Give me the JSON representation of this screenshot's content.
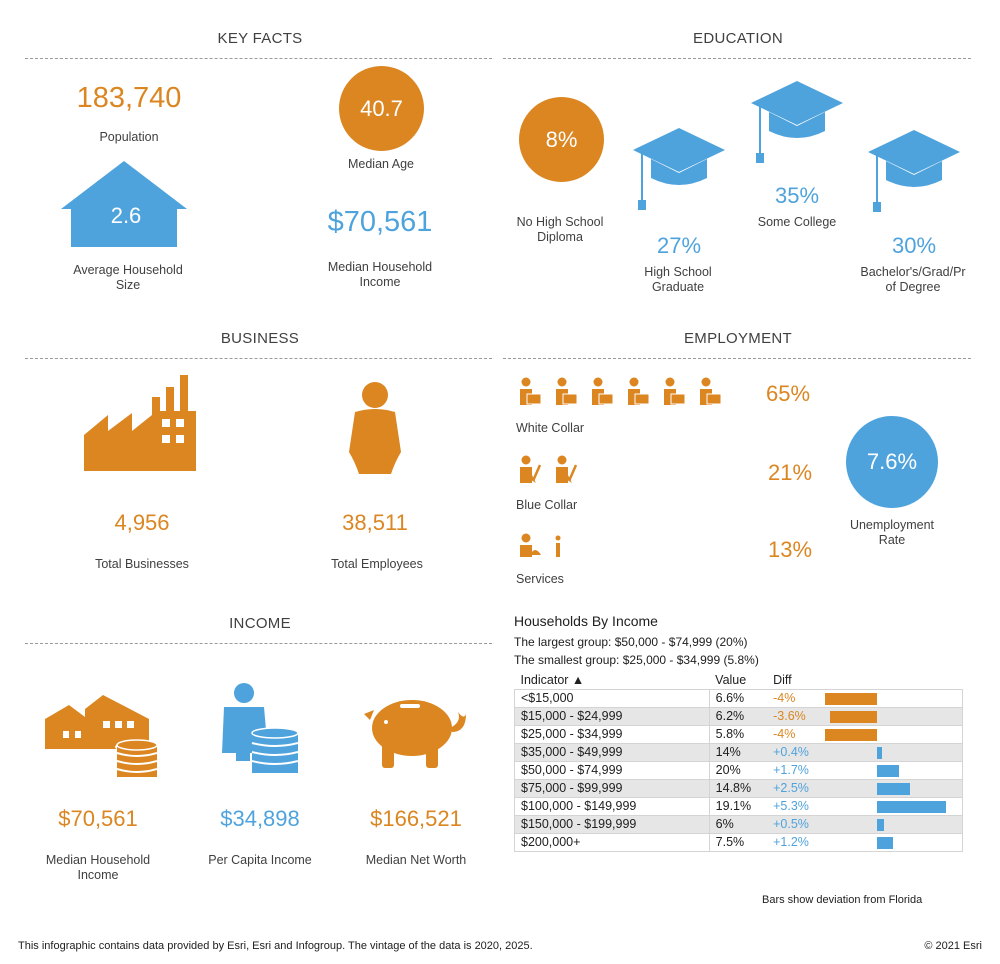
{
  "key_facts": {
    "title": "KEY FACTS",
    "population": {
      "value": "183,740",
      "label": "Population"
    },
    "median_age": {
      "value": "40.7",
      "label": "Median Age"
    },
    "avg_household_size": {
      "value": "2.6",
      "label_line1": "Average Household",
      "label_line2": "Size"
    },
    "median_household_income": {
      "value": "$70,561",
      "label_line1": "Median Household",
      "label_line2": "Income"
    }
  },
  "education": {
    "title": "EDUCATION",
    "no_high_school": {
      "value": "8%",
      "label_line1": "No High School",
      "label_line2": "Diploma"
    },
    "high_school": {
      "value": "27%",
      "label_line1": "High School",
      "label_line2": "Graduate"
    },
    "some_college": {
      "value": "35%",
      "label": "Some College"
    },
    "bachelors": {
      "value": "30%",
      "label_line1": "Bachelor's/Grad/Pr",
      "label_line2": "of Degree"
    }
  },
  "business": {
    "title": "BUSINESS",
    "total_businesses": {
      "value": "4,956",
      "label": "Total Businesses"
    },
    "total_employees": {
      "value": "38,511",
      "label": "Total Employees"
    }
  },
  "employment": {
    "title": "EMPLOYMENT",
    "white_collar": {
      "value": "65%",
      "label": "White Collar"
    },
    "blue_collar": {
      "value": "21%",
      "label": "Blue Collar"
    },
    "services": {
      "value": "13%",
      "label": "Services"
    },
    "unemployment": {
      "value": "7.6%",
      "label_line1": "Unemployment",
      "label_line2": "Rate"
    }
  },
  "income": {
    "title": "INCOME",
    "median_household_income": {
      "value": "$70,561",
      "label_line1": "Median Household",
      "label_line2": "Income"
    },
    "per_capita_income": {
      "value": "$34,898",
      "label": "Per Capita Income"
    },
    "median_net_worth": {
      "value": "$166,521",
      "label": "Median Net Worth"
    }
  },
  "households_by_income": {
    "title": "Households By Income",
    "largest": "The largest group: $50,000 - $74,999 (20%)",
    "smallest": "The smallest group: $25,000 - $34,999 (5.8%)",
    "headers": {
      "indicator": "Indicator ▲",
      "value": "Value",
      "diff": "Diff"
    },
    "rows": [
      {
        "indicator": "<$15,000",
        "value": "6.6%",
        "diff": "-4%",
        "diff_num": -4.0
      },
      {
        "indicator": "$15,000 - $24,999",
        "value": "6.2%",
        "diff": "-3.6%",
        "diff_num": -3.6
      },
      {
        "indicator": "$25,000 - $34,999",
        "value": "5.8%",
        "diff": "-4%",
        "diff_num": -4.0
      },
      {
        "indicator": "$35,000 - $49,999",
        "value": "14%",
        "diff": "+0.4%",
        "diff_num": 0.4
      },
      {
        "indicator": "$50,000 - $74,999",
        "value": "20%",
        "diff": "+1.7%",
        "diff_num": 1.7
      },
      {
        "indicator": "$75,000 - $99,999",
        "value": "14.8%",
        "diff": "+2.5%",
        "diff_num": 2.5
      },
      {
        "indicator": "$100,000 - $149,999",
        "value": "19.1%",
        "diff": "+5.3%",
        "diff_num": 5.3
      },
      {
        "indicator": "$150,000 - $199,999",
        "value": "6%",
        "diff": "+0.5%",
        "diff_num": 0.5
      },
      {
        "indicator": "$200,000+",
        "value": "7.5%",
        "diff": "+1.2%",
        "diff_num": 1.2
      }
    ],
    "note_prefix": "Bars show deviation from",
    "note_region": "Florida"
  },
  "footer": {
    "left": "This infographic contains data provided by Esri, Esri and Infogroup. The vintage of the data is 2020, 2025.",
    "right": "© 2021 Esri"
  },
  "colors": {
    "orange": "#db8621",
    "blue": "#4fa3dd"
  }
}
